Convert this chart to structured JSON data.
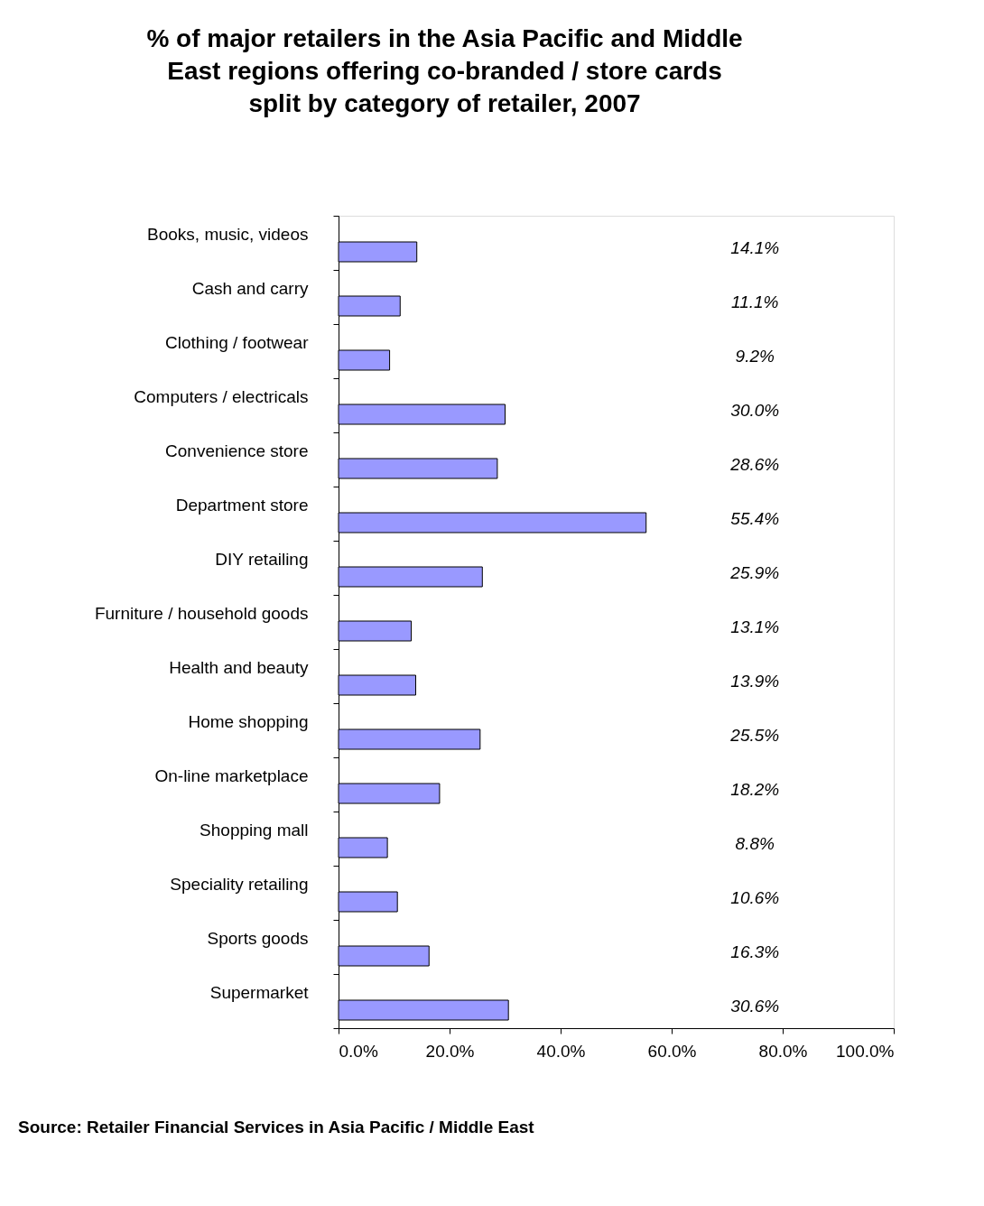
{
  "chart_data": {
    "type": "bar",
    "orientation": "horizontal",
    "title": [
      "% of major retailers in the Asia Pacific and Middle",
      "East regions offering co-branded / store cards",
      "split by category of retailer, 2007"
    ],
    "categories": [
      "Books, music, videos",
      "Cash and carry",
      "Clothing / footwear",
      "Computers / electricals",
      "Convenience store",
      "Department store",
      "DIY retailing",
      "Furniture / household goods",
      "Health and beauty",
      "Home shopping",
      "On-line marketplace",
      "Shopping mall",
      "Speciality retailing",
      "Sports goods",
      "Supermarket"
    ],
    "values": [
      14.1,
      11.1,
      9.2,
      30.0,
      28.6,
      55.4,
      25.9,
      13.1,
      13.9,
      25.5,
      18.2,
      8.8,
      10.6,
      16.3,
      30.6
    ],
    "color": "#9999ff",
    "xlim": [
      0,
      100
    ],
    "xticks": [
      {
        "value": 0,
        "label": "0.0%"
      },
      {
        "value": 20,
        "label": "20.0%"
      },
      {
        "value": 40,
        "label": "40.0%"
      },
      {
        "value": 60,
        "label": "60.0%"
      },
      {
        "value": 80,
        "label": "80.0%"
      },
      {
        "value": 100,
        "label": "100.0%"
      }
    ],
    "value_labels": [
      "14.1%",
      "11.1%",
      "9.2%",
      "30.0%",
      "28.6%",
      "55.4%",
      "25.9%",
      "13.1%",
      "13.9%",
      "25.5%",
      "18.2%",
      "8.8%",
      "10.6%",
      "16.3%",
      "30.6%"
    ],
    "grid": false,
    "annotations": [
      "Source: Retailer Financial Services in Asia Pacific / Middle East"
    ]
  }
}
